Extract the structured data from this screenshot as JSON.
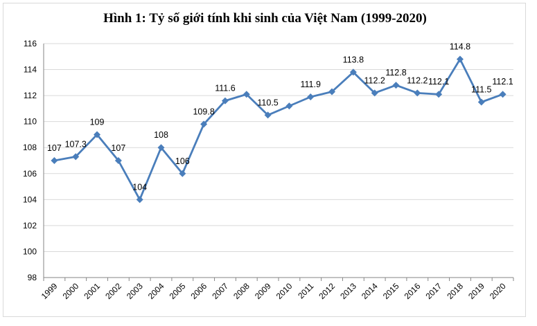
{
  "chart_data": {
    "type": "line",
    "title": "Hình 1: Tỷ số giới tính khi sinh của Việt Nam (1999-2020)",
    "xlabel": "",
    "ylabel": "",
    "categories": [
      "1999",
      "2000",
      "2001",
      "2002",
      "2003",
      "2004",
      "2005",
      "2006",
      "2007",
      "2008",
      "2009",
      "2010",
      "2011",
      "2012",
      "2013",
      "2014",
      "2015",
      "2016",
      "2017",
      "2018",
      "2019",
      "2020"
    ],
    "series": [
      {
        "values": [
          107,
          107.3,
          109,
          107,
          104,
          108,
          106,
          109.8,
          111.6,
          112.1,
          110.5,
          111.2,
          111.9,
          112.3,
          113.8,
          112.2,
          112.8,
          112.2,
          112.1,
          114.8,
          111.5,
          112.1
        ],
        "data_labels": [
          "107",
          "107.3",
          "109",
          "107",
          "104",
          "108",
          "106",
          "109.8",
          "111.6",
          "",
          "110.5",
          "",
          "111.9",
          "",
          "113.8",
          "112.2",
          "112.8",
          "112.2",
          "112.1",
          "114.8",
          "111.5",
          "112.1"
        ],
        "color": "#4a7ebb"
      }
    ],
    "ylim": [
      98,
      116
    ],
    "yticks": [
      98,
      100,
      102,
      104,
      106,
      108,
      110,
      112,
      114,
      116
    ],
    "grid": true,
    "gridline_color": "#d9d9d9"
  }
}
